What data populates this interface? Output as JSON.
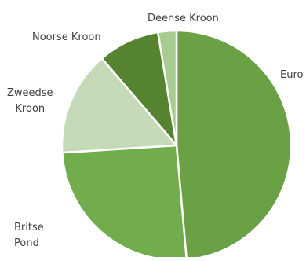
{
  "chart_data": {
    "type": "pie",
    "title": "",
    "slices": [
      {
        "label": "Euro",
        "value": 48.6,
        "color": "#6aa145"
      },
      {
        "label": "Britse\nPond",
        "value": 25.4,
        "color": "#72ad4d"
      },
      {
        "label": "Zweedse\nKroon",
        "value": 14.7,
        "color": "#c5dab9"
      },
      {
        "label": "Noorse Kroon",
        "value": 8.7,
        "color": "#56832f"
      },
      {
        "label": "Deense Kroon",
        "value": 2.6,
        "color": "#a8cb92"
      }
    ],
    "start_angle_deg": 0,
    "direction": "clockwise",
    "legend": "none",
    "slice_border_color": "#ffffff"
  }
}
